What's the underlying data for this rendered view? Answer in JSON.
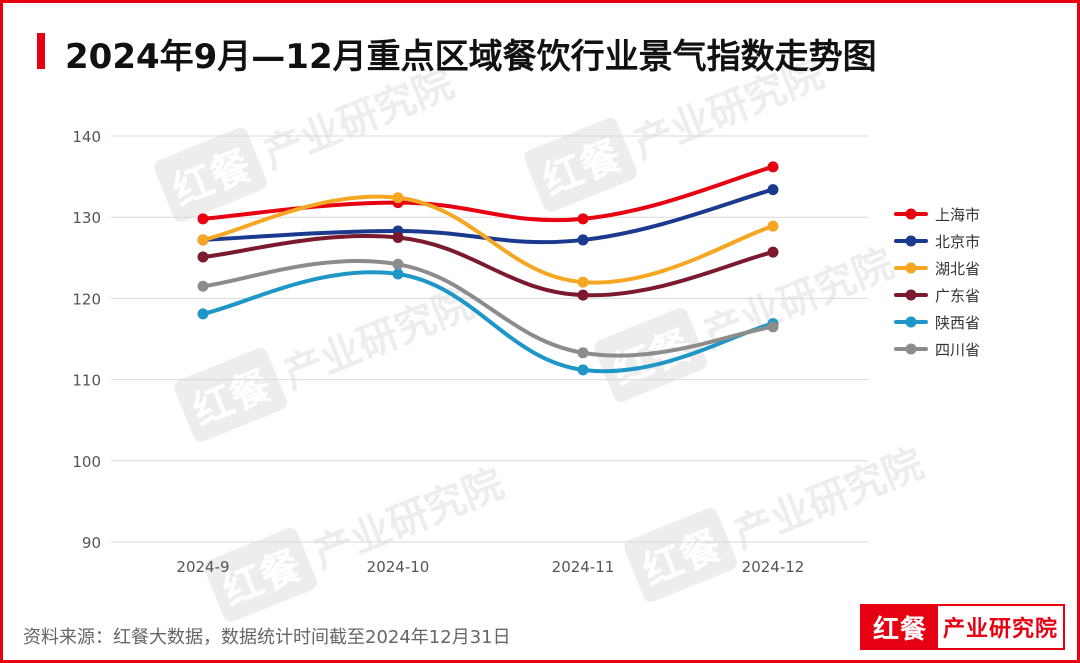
{
  "title": "2024年9月—12月重点区域餐饮行业景气指数走势图",
  "source": "资料来源：红餐大数据，数据统计时间截至2024年12月31日",
  "logo": {
    "brand": "红餐",
    "subtitle": "产业研究院"
  },
  "watermark": {
    "brand": "红餐",
    "text": "产业研究院"
  },
  "colors": {
    "frame": "#e60012",
    "grid": "#d9d9d9"
  },
  "chart_data": {
    "type": "line",
    "title": "",
    "xlabel": "",
    "ylabel": "",
    "categories": [
      "2024-9",
      "2024-10",
      "2024-11",
      "2024-12"
    ],
    "ylim": [
      90,
      140
    ],
    "yticks": [
      90,
      100,
      110,
      120,
      130,
      140
    ],
    "grid": true,
    "legend_position": "right",
    "series": [
      {
        "name": "上海市",
        "color": "#e60012",
        "values": [
          129.8,
          131.8,
          129.8,
          136.2
        ]
      },
      {
        "name": "北京市",
        "color": "#1a3a8f",
        "values": [
          127.2,
          128.3,
          127.2,
          133.4
        ]
      },
      {
        "name": "湖北省",
        "color": "#f5a623",
        "values": [
          127.2,
          132.4,
          122.0,
          128.9
        ]
      },
      {
        "name": "广东省",
        "color": "#7b1a2e",
        "values": [
          125.1,
          127.5,
          120.4,
          125.7
        ]
      },
      {
        "name": "陕西省",
        "color": "#1f96c8",
        "values": [
          118.1,
          123.0,
          111.2,
          116.9
        ]
      },
      {
        "name": "四川省",
        "color": "#8c8c8c",
        "values": [
          121.5,
          124.2,
          113.3,
          116.5
        ]
      }
    ]
  }
}
